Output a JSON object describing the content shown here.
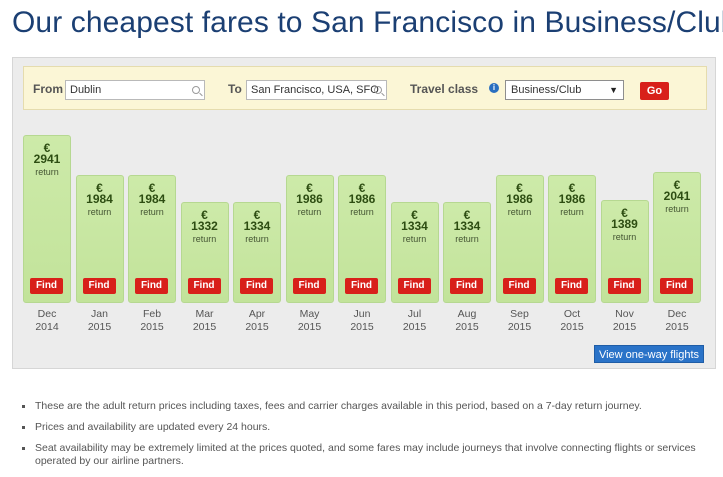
{
  "title": "Our cheapest fares to San Francisco in Business/Club",
  "search": {
    "from_label": "From",
    "from_value": "Dublin",
    "to_label": "To",
    "to_value": "San Francisco, USA, SFO",
    "class_label": "Travel class",
    "class_value": "Business/Club",
    "go_label": "Go"
  },
  "fares": [
    {
      "currency": "€",
      "price": "2941",
      "label": "return",
      "find": "Find",
      "month": "Dec",
      "year": "2014"
    },
    {
      "currency": "€",
      "price": "1984",
      "label": "return",
      "find": "Find",
      "month": "Jan",
      "year": "2015"
    },
    {
      "currency": "€",
      "price": "1984",
      "label": "return",
      "find": "Find",
      "month": "Feb",
      "year": "2015"
    },
    {
      "currency": "€",
      "price": "1332",
      "label": "return",
      "find": "Find",
      "month": "Mar",
      "year": "2015"
    },
    {
      "currency": "€",
      "price": "1334",
      "label": "return",
      "find": "Find",
      "month": "Apr",
      "year": "2015"
    },
    {
      "currency": "€",
      "price": "1986",
      "label": "return",
      "find": "Find",
      "month": "May",
      "year": "2015"
    },
    {
      "currency": "€",
      "price": "1986",
      "label": "return",
      "find": "Find",
      "month": "Jun",
      "year": "2015"
    },
    {
      "currency": "€",
      "price": "1334",
      "label": "return",
      "find": "Find",
      "month": "Jul",
      "year": "2015"
    },
    {
      "currency": "€",
      "price": "1334",
      "label": "return",
      "find": "Find",
      "month": "Aug",
      "year": "2015"
    },
    {
      "currency": "€",
      "price": "1986",
      "label": "return",
      "find": "Find",
      "month": "Sep",
      "year": "2015"
    },
    {
      "currency": "€",
      "price": "1986",
      "label": "return",
      "find": "Find",
      "month": "Oct",
      "year": "2015"
    },
    {
      "currency": "€",
      "price": "1389",
      "label": "return",
      "find": "Find",
      "month": "Nov",
      "year": "2015"
    },
    {
      "currency": "€",
      "price": "2041",
      "label": "return",
      "find": "Find",
      "month": "Dec",
      "year": "2015"
    }
  ],
  "oneway_label": "View one-way flights",
  "notes": [
    "These are the adult return prices including taxes, fees and carrier charges available in this period, based on a 7-day return journey.",
    "Prices and availability are updated every 24 hours.",
    "Seat availability may be extremely limited at the prices quoted, and some fares may include journeys that involve connecting flights or services operated by our airline partners."
  ],
  "colors": {
    "title": "#1b3f73",
    "bar": "#c8e6a2",
    "button_red": "#d8201a",
    "button_blue": "#2a73c8",
    "search_bg": "#fbf6d6"
  }
}
